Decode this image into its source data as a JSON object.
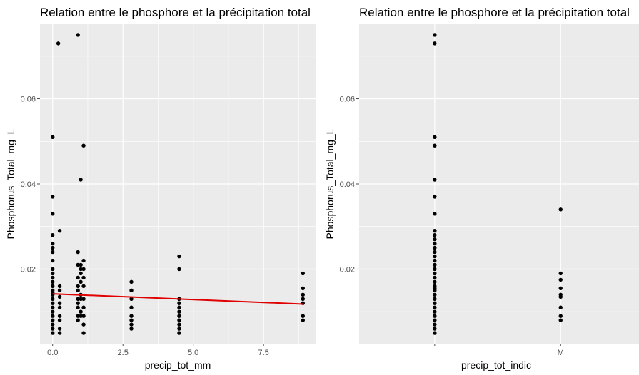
{
  "colors": {
    "panel_bg": "#ebebeb",
    "grid_major": "#ffffff",
    "point": "#000000",
    "trend": "#e00000",
    "tick_text": "#4d4d4d"
  },
  "chart_data": [
    {
      "type": "scatter",
      "title": "Relation entre le phosphore et la précipitation total",
      "xlabel": "precip_tot_mm",
      "ylabel": "Phosphorus_Total_mg_L",
      "xlim": [
        -0.45,
        9.35
      ],
      "ylim": [
        0.0025,
        0.0775
      ],
      "x_ticks": [
        0,
        2.5,
        5,
        7.5
      ],
      "x_tick_labels": [
        "0.0",
        "2.5",
        "5.0",
        "7.5"
      ],
      "y_ticks": [
        0.02,
        0.04,
        0.06
      ],
      "y_tick_labels": [
        "0.02",
        "0.04",
        "0.06"
      ],
      "grid": true,
      "trend_line": {
        "x": [
          0,
          8.9
        ],
        "y": [
          0.0142,
          0.0118
        ]
      },
      "points": [
        [
          0,
          0.051
        ],
        [
          0,
          0.037
        ],
        [
          0,
          0.033
        ],
        [
          0,
          0.028
        ],
        [
          0,
          0.026
        ],
        [
          0,
          0.025
        ],
        [
          0,
          0.024
        ],
        [
          0,
          0.022
        ],
        [
          0,
          0.02
        ],
        [
          0,
          0.019
        ],
        [
          0,
          0.018
        ],
        [
          0,
          0.017
        ],
        [
          0,
          0.016
        ],
        [
          0,
          0.015
        ],
        [
          0,
          0.0145
        ],
        [
          0,
          0.014
        ],
        [
          0,
          0.013
        ],
        [
          0,
          0.012
        ],
        [
          0,
          0.011
        ],
        [
          0,
          0.01
        ],
        [
          0,
          0.009
        ],
        [
          0,
          0.008
        ],
        [
          0,
          0.007
        ],
        [
          0,
          0.006
        ],
        [
          0,
          0.005
        ],
        [
          0.2,
          0.073
        ],
        [
          0.25,
          0.029
        ],
        [
          0.25,
          0.016
        ],
        [
          0.25,
          0.015
        ],
        [
          0.25,
          0.0135
        ],
        [
          0.25,
          0.012
        ],
        [
          0.25,
          0.011
        ],
        [
          0.25,
          0.009
        ],
        [
          0.25,
          0.008
        ],
        [
          0.25,
          0.006
        ],
        [
          0.25,
          0.005
        ],
        [
          0.9,
          0.075
        ],
        [
          0.9,
          0.024
        ],
        [
          0.9,
          0.021
        ],
        [
          0.9,
          0.018
        ],
        [
          0.9,
          0.016
        ],
        [
          0.9,
          0.015
        ],
        [
          0.9,
          0.013
        ],
        [
          0.9,
          0.012
        ],
        [
          0.9,
          0.011
        ],
        [
          0.9,
          0.009
        ],
        [
          0.9,
          0.008
        ],
        [
          1.0,
          0.041
        ],
        [
          1.0,
          0.021
        ],
        [
          1.0,
          0.02
        ],
        [
          1.0,
          0.019
        ],
        [
          1.0,
          0.017
        ],
        [
          1.0,
          0.014
        ],
        [
          1.0,
          0.013
        ],
        [
          1.0,
          0.01
        ],
        [
          1.0,
          0.009
        ],
        [
          1.1,
          0.049
        ],
        [
          1.1,
          0.022
        ],
        [
          1.1,
          0.02
        ],
        [
          1.1,
          0.018
        ],
        [
          1.1,
          0.016
        ],
        [
          1.1,
          0.013
        ],
        [
          1.1,
          0.011
        ],
        [
          1.1,
          0.009
        ],
        [
          1.1,
          0.007
        ],
        [
          1.1,
          0.005
        ],
        [
          2.8,
          0.017
        ],
        [
          2.8,
          0.015
        ],
        [
          2.8,
          0.013
        ],
        [
          2.8,
          0.011
        ],
        [
          2.8,
          0.009
        ],
        [
          2.8,
          0.008
        ],
        [
          2.8,
          0.007
        ],
        [
          2.8,
          0.006
        ],
        [
          4.5,
          0.023
        ],
        [
          4.5,
          0.02
        ],
        [
          4.5,
          0.013
        ],
        [
          4.5,
          0.012
        ],
        [
          4.5,
          0.011
        ],
        [
          4.5,
          0.01
        ],
        [
          4.5,
          0.009
        ],
        [
          4.5,
          0.008
        ],
        [
          4.5,
          0.007
        ],
        [
          4.5,
          0.006
        ],
        [
          4.5,
          0.005
        ],
        [
          8.9,
          0.019
        ],
        [
          8.9,
          0.0155
        ],
        [
          8.9,
          0.014
        ],
        [
          8.9,
          0.013
        ],
        [
          8.9,
          0.012
        ],
        [
          8.9,
          0.009
        ],
        [
          8.9,
          0.008
        ]
      ]
    },
    {
      "type": "scatter",
      "title": "Relation entre le phosphore et la précipitation total",
      "xlabel": "precip_tot_indic",
      "ylabel": "Phosphorus_Total_mg_L",
      "categories": [
        "",
        "M"
      ],
      "ylim": [
        0.0025,
        0.0775
      ],
      "y_ticks": [
        0.02,
        0.04,
        0.06
      ],
      "y_tick_labels": [
        "0.02",
        "0.04",
        "0.06"
      ],
      "grid": true,
      "points": [
        [
          "",
          0.075
        ],
        [
          "",
          0.073
        ],
        [
          "",
          0.051
        ],
        [
          "",
          0.049
        ],
        [
          "",
          0.041
        ],
        [
          "",
          0.037
        ],
        [
          "",
          0.033
        ],
        [
          "",
          0.029
        ],
        [
          "",
          0.028
        ],
        [
          "",
          0.027
        ],
        [
          "",
          0.026
        ],
        [
          "",
          0.025
        ],
        [
          "",
          0.024
        ],
        [
          "",
          0.023
        ],
        [
          "",
          0.022
        ],
        [
          "",
          0.021
        ],
        [
          "",
          0.02
        ],
        [
          "",
          0.019
        ],
        [
          "",
          0.018
        ],
        [
          "",
          0.017
        ],
        [
          "",
          0.016
        ],
        [
          "",
          0.0155
        ],
        [
          "",
          0.015
        ],
        [
          "",
          0.014
        ],
        [
          "",
          0.013
        ],
        [
          "",
          0.012
        ],
        [
          "",
          0.011
        ],
        [
          "",
          0.01
        ],
        [
          "",
          0.009
        ],
        [
          "",
          0.008
        ],
        [
          "",
          0.007
        ],
        [
          "",
          0.006
        ],
        [
          "",
          0.005
        ],
        [
          "M",
          0.034
        ],
        [
          "M",
          0.019
        ],
        [
          "M",
          0.0175
        ],
        [
          "M",
          0.0155
        ],
        [
          "M",
          0.014
        ],
        [
          "M",
          0.0135
        ],
        [
          "M",
          0.011
        ],
        [
          "M",
          0.009
        ],
        [
          "M",
          0.008
        ]
      ]
    }
  ]
}
